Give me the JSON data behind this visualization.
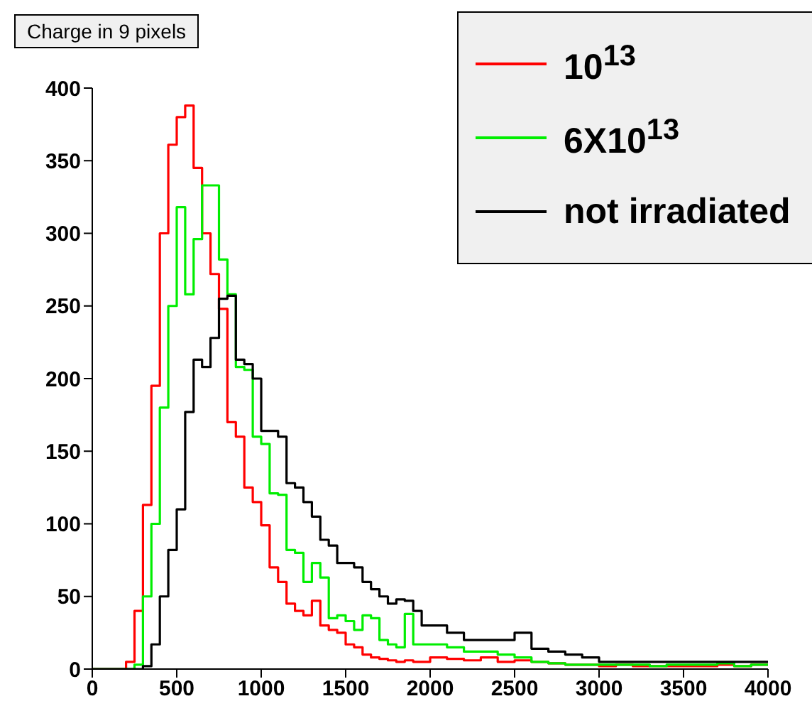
{
  "chart_data": {
    "type": "histogram",
    "title": "Charge in 9 pixels",
    "bins": [
      0,
      50,
      100,
      150,
      200,
      250,
      300,
      350,
      400,
      450,
      500,
      550,
      600,
      650,
      700,
      750,
      800,
      850,
      900,
      950,
      1000,
      1050,
      1100,
      1150,
      1200,
      1250,
      1300,
      1350,
      1400,
      1450,
      1500,
      1550,
      1600,
      1650,
      1700,
      1750,
      1800,
      1850,
      1900,
      1950,
      2000,
      2100,
      2200,
      2300,
      2400,
      2500,
      2600,
      2700,
      2800,
      2900,
      3000,
      3100,
      3200,
      3300,
      3400,
      3500,
      3600,
      3700,
      3800,
      3900,
      4000
    ],
    "series": [
      {
        "name": "10$^{13}$",
        "color": "#ff0000",
        "values": [
          0,
          0,
          0,
          0,
          5,
          40,
          113,
          195,
          300,
          361,
          380,
          388,
          345,
          300,
          272,
          248,
          170,
          160,
          125,
          115,
          99,
          70,
          60,
          45,
          40,
          37,
          47,
          30,
          27,
          25,
          17,
          15,
          10,
          8,
          7,
          6,
          5,
          6,
          5,
          5,
          8,
          7,
          6,
          8,
          5,
          6,
          5,
          4,
          3,
          3,
          2,
          3,
          2,
          2,
          2,
          2,
          2,
          3,
          2,
          3
        ]
      },
      {
        "name": "6X10$^{13}$",
        "color": "#00ee00",
        "values": [
          0,
          0,
          0,
          0,
          0,
          3,
          50,
          100,
          180,
          250,
          318,
          258,
          296,
          333,
          333,
          282,
          258,
          208,
          206,
          160,
          155,
          121,
          120,
          82,
          80,
          60,
          73,
          63,
          35,
          37,
          33,
          27,
          37,
          35,
          20,
          17,
          15,
          38,
          17,
          17,
          17,
          15,
          12,
          12,
          10,
          8,
          5,
          4,
          3,
          3,
          3,
          3,
          3,
          2,
          3,
          3,
          3,
          4,
          2,
          3
        ]
      },
      {
        "name": "not irradiated",
        "color": "#000000",
        "values": [
          0,
          0,
          0,
          0,
          0,
          0,
          2,
          17,
          50,
          82,
          110,
          177,
          213,
          208,
          228,
          255,
          257,
          213,
          210,
          200,
          164,
          164,
          160,
          128,
          125,
          115,
          105,
          89,
          85,
          73,
          73,
          70,
          60,
          55,
          50,
          45,
          48,
          47,
          40,
          30,
          30,
          25,
          20,
          20,
          20,
          25,
          14,
          12,
          10,
          8,
          5,
          5,
          5,
          5,
          5,
          5,
          5,
          5,
          5,
          5
        ]
      }
    ],
    "xlim": [
      0,
      4000
    ],
    "xticks": [
      0,
      500,
      1000,
      1500,
      2000,
      2500,
      3000,
      3500,
      4000
    ],
    "ylim": [
      0,
      400
    ],
    "yticks": [
      0,
      50,
      100,
      150,
      200,
      250,
      300,
      350,
      400
    ],
    "legend": "top right",
    "grid": false
  }
}
